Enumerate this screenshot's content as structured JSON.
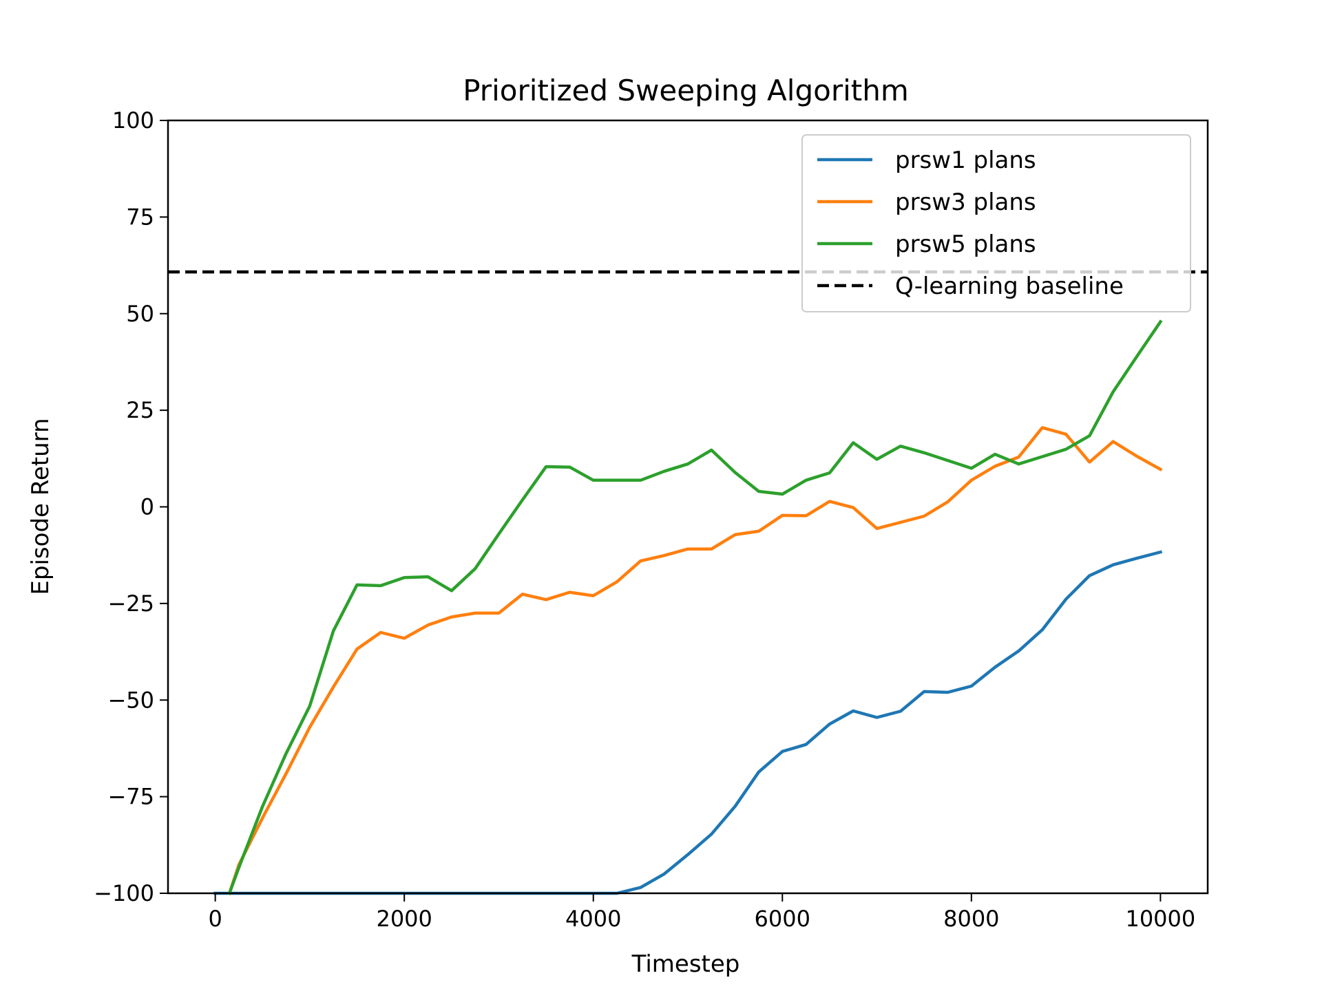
{
  "chart_data": {
    "type": "line",
    "title": "Prioritized Sweeping Algorithm",
    "xlabel": "Timestep",
    "ylabel": "Episode Return",
    "xlim": [
      -500,
      10500
    ],
    "ylim": [
      -100,
      100
    ],
    "xticks": [
      0,
      2000,
      4000,
      6000,
      8000,
      10000
    ],
    "xtick_labels": [
      "0",
      "2000",
      "4000",
      "6000",
      "8000",
      "10000"
    ],
    "yticks": [
      -100,
      -75,
      -50,
      -25,
      0,
      25,
      50,
      75,
      100
    ],
    "ytick_labels": [
      "−100",
      "−75",
      "−50",
      "−25",
      "0",
      "25",
      "50",
      "75",
      "100"
    ],
    "grid": false,
    "legend": "top-right",
    "series": [
      {
        "name": "prsw1 plans",
        "color": "#1f77b4",
        "style": "solid",
        "x": [
          0,
          250,
          500,
          750,
          1000,
          1250,
          1500,
          1750,
          2000,
          2250,
          2500,
          2750,
          3000,
          3250,
          3500,
          3750,
          4000,
          4250,
          4500,
          4750,
          5000,
          5250,
          5500,
          5750,
          6000,
          6250,
          6500,
          6750,
          7000,
          7250,
          7500,
          7750,
          8000,
          8250,
          8500,
          8750,
          9000,
          9250,
          9500,
          9750,
          10000
        ],
        "y": [
          -100,
          -100,
          -100,
          -100,
          -100,
          -100,
          -100,
          -100,
          -100,
          -100,
          -100,
          -100,
          -100,
          -100,
          -100,
          -100,
          -100,
          -100,
          -98.5,
          -95,
          -90,
          -84.7,
          -77.5,
          -68.6,
          -63.3,
          -61.5,
          -56.2,
          -52.8,
          -54.5,
          -52.9,
          -47.8,
          -48,
          -46.4,
          -41.5,
          -37.3,
          -31.8,
          -23.9,
          -17.8,
          -15,
          -13.3,
          -11.7
        ]
      },
      {
        "name": "prsw3 plans",
        "color": "#ff7f0e",
        "style": "solid",
        "x": [
          150,
          250,
          500,
          750,
          1000,
          1250,
          1500,
          1750,
          2000,
          2250,
          2500,
          2750,
          3000,
          3250,
          3500,
          3750,
          4000,
          4250,
          4500,
          4750,
          5000,
          5250,
          5500,
          5750,
          6000,
          6250,
          6500,
          6750,
          7000,
          7250,
          7500,
          7750,
          8000,
          8250,
          8500,
          8750,
          9000,
          9250,
          9500,
          9750,
          10000
        ],
        "y": [
          -100,
          -92.6,
          -80.5,
          -69,
          -57,
          -46.6,
          -36.8,
          -32.5,
          -34,
          -30.6,
          -28.5,
          -27.5,
          -27.5,
          -22.6,
          -24,
          -22.1,
          -23,
          -19.4,
          -14,
          -12.6,
          -10.9,
          -10.9,
          -7.2,
          -6.3,
          -2.2,
          -2.3,
          1.4,
          -0.2,
          -5.6,
          -4,
          -2.4,
          1.3,
          6.9,
          10.5,
          12.9,
          20.5,
          18.8,
          11.6,
          16.9,
          13.1,
          9.7
        ]
      },
      {
        "name": "prsw5 plans",
        "color": "#2ca02c",
        "style": "solid",
        "x": [
          150,
          250,
          500,
          750,
          1000,
          1250,
          1500,
          1750,
          2000,
          2250,
          2500,
          2750,
          3000,
          3250,
          3500,
          3750,
          4000,
          4250,
          4500,
          4750,
          5000,
          5250,
          5500,
          5750,
          6000,
          6250,
          6500,
          6750,
          7000,
          7250,
          7500,
          7750,
          8000,
          8250,
          8500,
          8750,
          9000,
          9250,
          9500,
          9750,
          10000
        ],
        "y": [
          -100,
          -93.3,
          -77.5,
          -63.8,
          -51.5,
          -32.1,
          -20.2,
          -20.4,
          -18.3,
          -18.1,
          -21.7,
          -16,
          -7,
          1.8,
          10.4,
          10.3,
          6.9,
          6.9,
          6.9,
          9.2,
          11.1,
          14.7,
          8.9,
          4,
          3.3,
          6.9,
          8.8,
          16.6,
          12.3,
          15.7,
          14,
          12,
          10,
          13.6,
          11.1,
          13,
          14.9,
          18.4,
          29.8,
          38.9,
          47.9
        ]
      },
      {
        "name": "Q-learning baseline",
        "color": "#000000",
        "style": "dashed",
        "y_constant": 60.8
      }
    ]
  }
}
